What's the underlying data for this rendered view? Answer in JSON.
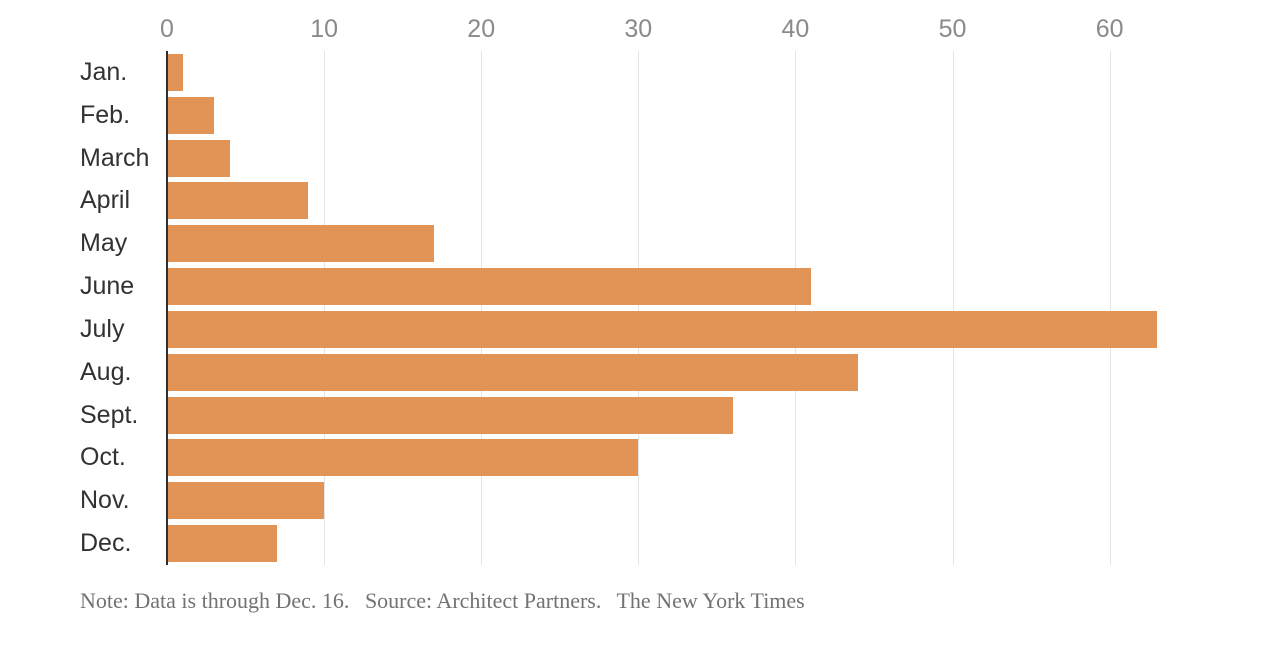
{
  "chart_data": {
    "type": "bar",
    "orientation": "horizontal",
    "title": "",
    "xlabel": "",
    "ylabel": "",
    "categories": [
      "Jan.",
      "Feb.",
      "March",
      "April",
      "May",
      "June",
      "July",
      "Aug.",
      "Sept.",
      "Oct.",
      "Nov.",
      "Dec."
    ],
    "values": [
      1,
      3,
      4,
      9,
      17,
      41,
      63,
      44,
      36,
      30,
      10,
      7
    ],
    "x_ticks": [
      0,
      10,
      20,
      30,
      40,
      50,
      60
    ],
    "x_max": 69.7,
    "grid": true,
    "legend": false,
    "tick_position": "top",
    "bar_color": "#e29456",
    "grid_color": "#e4e4e4",
    "zero_line_color": "#2f2f2f",
    "tick_label_color": "#8a8a8a",
    "category_label_color": "#323232"
  },
  "note": {
    "note": "Note: Data is through Dec. 16.",
    "source": "Source: Architect Partners.",
    "credit": "The New York Times"
  }
}
